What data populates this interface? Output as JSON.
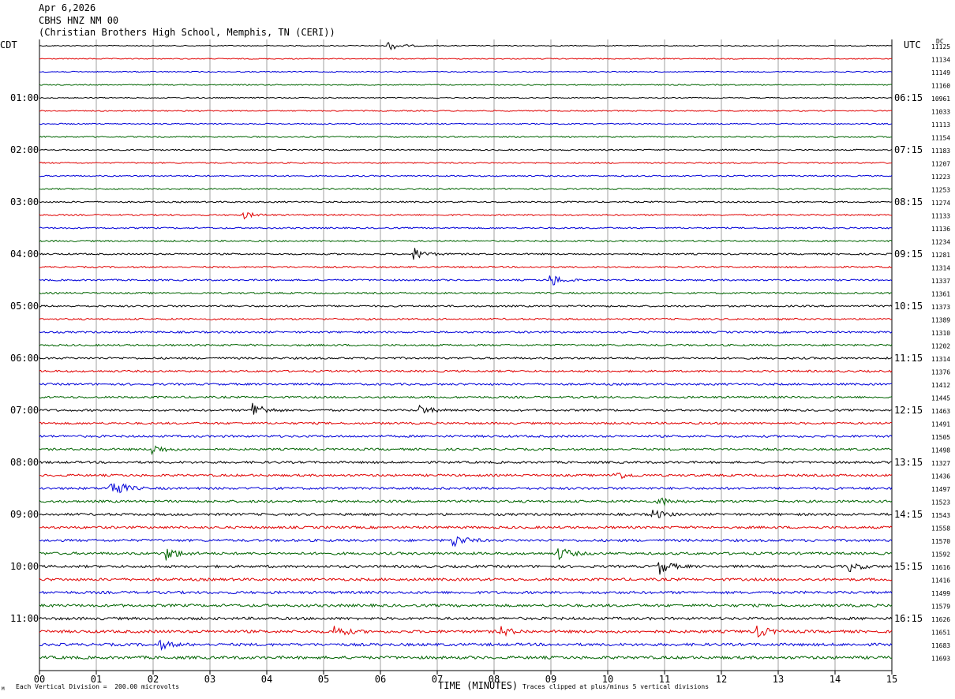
{
  "header": {
    "date": "Apr 6,2026",
    "station": "CBHS HNZ NM 00",
    "site": "(Christian Brothers High School, Memphis, TN (CERI))"
  },
  "labels": {
    "left_zone": "CDT",
    "right_zone": "UTC",
    "dc": "DC",
    "xlabel": "TIME (MINUTES)",
    "scale_note": "Each Vertical Division =  200.00 microvolts",
    "clip_note": "Traces clipped at plus/minus 5 vertical divisions",
    "mark": "M"
  },
  "chart_data": {
    "type": "line",
    "xlabel": "TIME (MINUTES)",
    "xlim": [
      0,
      15
    ],
    "x_ticks": [
      "00",
      "01",
      "02",
      "03",
      "04",
      "05",
      "06",
      "07",
      "08",
      "09",
      "10",
      "11",
      "12",
      "13",
      "14",
      "15"
    ],
    "trace_colors": [
      "#000000",
      "#e00000",
      "#0000d8",
      "#006400"
    ],
    "left_hour_labels": [
      "01:00",
      "02:00",
      "03:00",
      "04:00",
      "05:00",
      "06:00",
      "07:00",
      "08:00",
      "09:00",
      "10:00",
      "11:00"
    ],
    "right_hour_labels": [
      "06:15",
      "07:15",
      "08:15",
      "09:15",
      "10:15",
      "11:15",
      "12:15",
      "13:15",
      "14:15",
      "15:15",
      "16:15"
    ],
    "dc_offsets": [
      11125,
      11134,
      11149,
      11160,
      10961,
      11033,
      11113,
      11154,
      11183,
      11207,
      11223,
      11253,
      11274,
      11133,
      11136,
      11234,
      11281,
      11314,
      11337,
      11361,
      11373,
      11389,
      11310,
      11202,
      11314,
      11376,
      11412,
      11445,
      11463,
      11491,
      11505,
      11498,
      11327,
      11436,
      11497,
      11523,
      11543,
      11558,
      11570,
      11592,
      11616,
      11416,
      11499,
      11579,
      11626,
      11651,
      11683,
      11693
    ],
    "events": [
      {
        "trace": 0,
        "minute": 6.15,
        "amp": 6
      },
      {
        "trace": 13,
        "minute": 3.6,
        "amp": 4
      },
      {
        "trace": 16,
        "minute": 6.6,
        "amp": 8
      },
      {
        "trace": 18,
        "minute": 9.0,
        "amp": 8
      },
      {
        "trace": 28,
        "minute": 3.75,
        "amp": 12
      },
      {
        "trace": 28,
        "minute": 6.7,
        "amp": 6
      },
      {
        "trace": 31,
        "minute": 2.0,
        "amp": 6
      },
      {
        "trace": 33,
        "minute": 10.1,
        "amp": 7
      },
      {
        "trace": 34,
        "minute": 1.25,
        "amp": 16
      },
      {
        "trace": 35,
        "minute": 10.9,
        "amp": 6
      },
      {
        "trace": 36,
        "minute": 10.8,
        "amp": 6
      },
      {
        "trace": 38,
        "minute": 7.3,
        "amp": 8
      },
      {
        "trace": 39,
        "minute": 2.25,
        "amp": 8
      },
      {
        "trace": 39,
        "minute": 9.15,
        "amp": 8
      },
      {
        "trace": 40,
        "minute": 10.9,
        "amp": 10
      },
      {
        "trace": 40,
        "minute": 14.25,
        "amp": 6
      },
      {
        "trace": 45,
        "minute": 5.2,
        "amp": 8
      },
      {
        "trace": 45,
        "minute": 8.1,
        "amp": 7
      },
      {
        "trace": 45,
        "minute": 12.65,
        "amp": 7
      },
      {
        "trace": 46,
        "minute": 2.1,
        "amp": 6
      }
    ]
  }
}
